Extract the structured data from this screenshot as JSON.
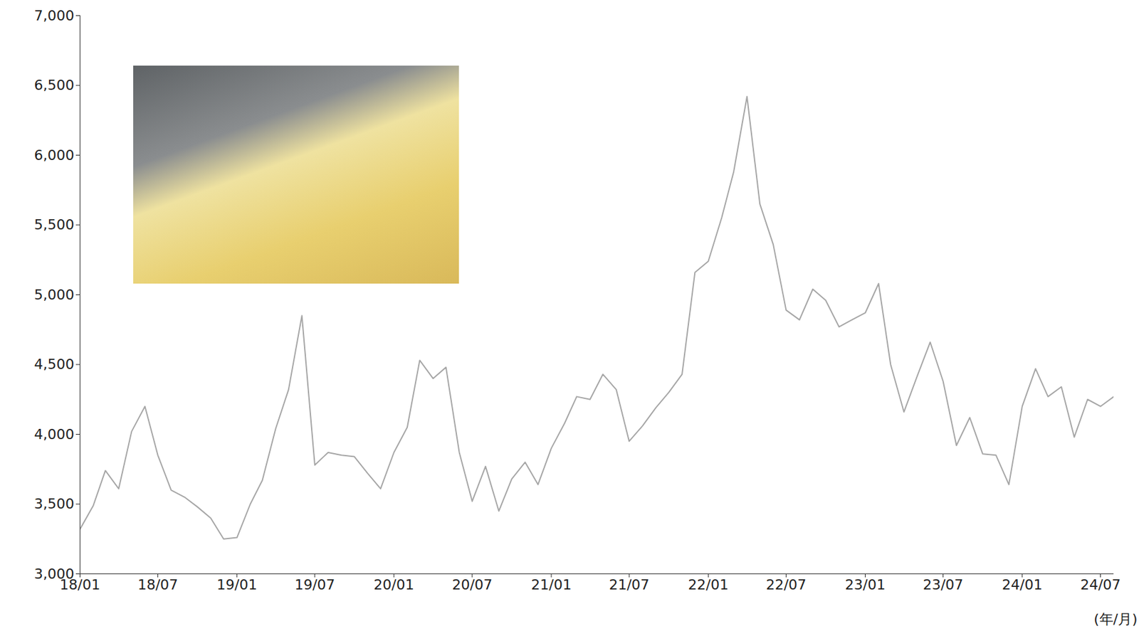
{
  "chart_data": {
    "type": "line",
    "x_label": "(年/月)",
    "color": "#a6a6a6",
    "x": [
      "2018-01",
      "2018-02",
      "2018-03",
      "2018-04",
      "2018-05",
      "2018-06",
      "2018-07",
      "2018-08",
      "2018-09",
      "2018-10",
      "2018-11",
      "2018-12",
      "2019-01",
      "2019-02",
      "2019-03",
      "2019-04",
      "2019-05",
      "2019-06",
      "2019-07",
      "2019-08",
      "2019-09",
      "2019-10",
      "2019-11",
      "2019-12",
      "2020-01",
      "2020-02",
      "2020-03",
      "2020-04",
      "2020-05",
      "2020-06",
      "2020-07",
      "2020-08",
      "2020-09",
      "2020-10",
      "2020-11",
      "2020-12",
      "2021-01",
      "2021-02",
      "2021-03",
      "2021-04",
      "2021-05",
      "2021-06",
      "2021-07",
      "2021-08",
      "2021-09",
      "2021-10",
      "2021-11",
      "2021-12",
      "2022-01",
      "2022-02",
      "2022-03",
      "2022-04",
      "2022-05",
      "2022-06",
      "2022-07",
      "2022-08",
      "2022-09",
      "2022-10",
      "2022-11",
      "2022-12",
      "2023-01",
      "2023-02",
      "2023-03",
      "2023-04",
      "2023-05",
      "2023-06",
      "2023-07",
      "2023-08",
      "2023-09",
      "2023-10",
      "2023-11",
      "2023-12",
      "2024-01",
      "2024-02",
      "2024-03",
      "2024-04",
      "2024-05",
      "2024-06",
      "2024-07",
      "2024-08"
    ],
    "values": [
      3320,
      3490,
      3740,
      3610,
      4020,
      4200,
      3850,
      3600,
      3550,
      3480,
      3400,
      3250,
      3260,
      3500,
      3670,
      4040,
      4320,
      4850,
      3780,
      3870,
      3850,
      3840,
      3720,
      3610,
      3870,
      4050,
      4530,
      4400,
      4480,
      3870,
      3520,
      3770,
      3450,
      3680,
      3800,
      3640,
      3900,
      4080,
      4270,
      4250,
      4430,
      4320,
      3950,
      4060,
      4190,
      4300,
      4430,
      5160,
      5240,
      5550,
      5880,
      6420,
      5650,
      5360,
      4890,
      4820,
      5040,
      4960,
      4770,
      4820,
      4870,
      5080,
      4500,
      4160,
      4410,
      4660,
      4380,
      3920,
      4120,
      3860,
      3850,
      3640,
      4200,
      4470,
      4270,
      4340,
      3980,
      4250,
      4200,
      4270
    ],
    "xlim": [
      "2018-01",
      "2024-08"
    ],
    "xticks": [
      {
        "value": "2018-01",
        "label": "18/01"
      },
      {
        "value": "2018-07",
        "label": "18/07"
      },
      {
        "value": "2019-01",
        "label": "19/01"
      },
      {
        "value": "2019-07",
        "label": "19/07"
      },
      {
        "value": "2020-01",
        "label": "20/01"
      },
      {
        "value": "2020-07",
        "label": "20/07"
      },
      {
        "value": "2021-01",
        "label": "21/01"
      },
      {
        "value": "2021-07",
        "label": "21/07"
      },
      {
        "value": "2022-01",
        "label": "22/01"
      },
      {
        "value": "2022-07",
        "label": "22/07"
      },
      {
        "value": "2023-01",
        "label": "23/01"
      },
      {
        "value": "2023-07",
        "label": "23/07"
      },
      {
        "value": "2024-01",
        "label": "24/01"
      },
      {
        "value": "2024-07",
        "label": "24/07"
      }
    ],
    "ylim": [
      3000,
      7000
    ],
    "yticks": [
      {
        "value": 3000,
        "label": "3,000"
      },
      {
        "value": 3500,
        "label": "3,500"
      },
      {
        "value": 4000,
        "label": "4,000"
      },
      {
        "value": 4500,
        "label": "4,500"
      },
      {
        "value": 5000,
        "label": "5,000"
      },
      {
        "value": 5500,
        "label": "5,500"
      },
      {
        "value": 6000,
        "label": "6,000"
      },
      {
        "value": 6500,
        "label": "6,500"
      },
      {
        "value": 7000,
        "label": "7,000"
      }
    ],
    "grid": false
  }
}
